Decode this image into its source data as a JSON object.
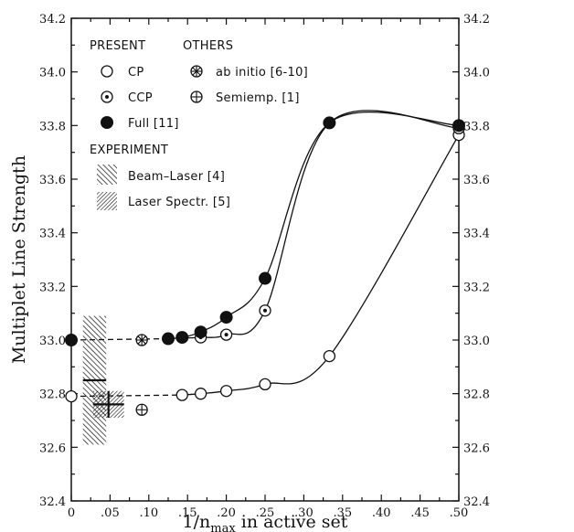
{
  "chart_data": {
    "type": "scatter",
    "xlabel": {
      "main": "1/n",
      "sub": "max",
      "rest": " in active set"
    },
    "ylabel": "Multiplet Line Strength",
    "xlim": [
      0,
      0.5
    ],
    "ylim": [
      32.4,
      34.2
    ],
    "x_ticks": [
      {
        "value": 0,
        "label": "0"
      },
      {
        "value": 0.05,
        "label": ".05"
      },
      {
        "value": 0.1,
        "label": ".10"
      },
      {
        "value": 0.15,
        "label": ".15"
      },
      {
        "value": 0.2,
        "label": ".20"
      },
      {
        "value": 0.25,
        "label": ".25"
      },
      {
        "value": 0.3,
        "label": ".30"
      },
      {
        "value": 0.35,
        "label": ".35"
      },
      {
        "value": 0.4,
        "label": ".40"
      },
      {
        "value": 0.45,
        "label": ".45"
      },
      {
        "value": 0.5,
        "label": ".50"
      }
    ],
    "y_ticks": [
      {
        "value": 32.4,
        "label": "32.4"
      },
      {
        "value": 32.6,
        "label": "32.6"
      },
      {
        "value": 32.8,
        "label": "32.8"
      },
      {
        "value": 33.0,
        "label": "33.0"
      },
      {
        "value": 33.2,
        "label": "33.2"
      },
      {
        "value": 33.4,
        "label": "33.4"
      },
      {
        "value": 33.6,
        "label": "33.6"
      },
      {
        "value": 33.8,
        "label": "33.8"
      },
      {
        "value": 34.0,
        "label": "34.0"
      },
      {
        "value": 34.2,
        "label": "34.2"
      }
    ],
    "legend": {
      "present_header": "PRESENT",
      "others_header": "OTHERS",
      "experiment_header": "EXPERIMENT",
      "cp": "CP",
      "ccp": "CCP",
      "full": "Full [11]",
      "ab_initio": "ab initio [6-10]",
      "semiemp": "Semiemp. [1]",
      "beam_laser": "Beam–Laser [4]",
      "laser_spectr": "Laser Spectr. [5]"
    },
    "series": [
      {
        "name": "CP",
        "marker": "open-circle",
        "x": [
          0,
          0.143,
          0.167,
          0.2,
          0.25,
          0.333,
          0.5
        ],
        "y": [
          32.79,
          32.795,
          32.8,
          32.81,
          32.835,
          32.94,
          33.765
        ]
      },
      {
        "name": "CCP",
        "marker": "dotted-circle",
        "x": [
          0.167,
          0.2,
          0.25,
          0.333,
          0.5
        ],
        "y": [
          33.01,
          33.02,
          33.11,
          33.81,
          33.79
        ]
      },
      {
        "name": "Full [11]",
        "marker": "filled-circle",
        "x": [
          0,
          0.125,
          0.143,
          0.167,
          0.2,
          0.25,
          0.333,
          0.5
        ],
        "y": [
          33.0,
          33.005,
          33.01,
          33.03,
          33.085,
          33.23,
          33.81,
          33.8
        ]
      },
      {
        "name": "ab initio [6-10]",
        "marker": "star-circle",
        "x": [
          0.091
        ],
        "y": [
          33.0
        ]
      },
      {
        "name": "Semiemp. [1]",
        "marker": "cross-circle",
        "x": [
          0.091
        ],
        "y": [
          32.74
        ]
      }
    ],
    "experiments": [
      {
        "name": "Beam–Laser [4]",
        "x": 0.03,
        "xerr": 0.015,
        "y": 32.85,
        "yerr": 0.24
      },
      {
        "name": "Laser Spectr. [5]",
        "x": 0.048,
        "xerr": 0.02,
        "y": 32.76,
        "yerr": 0.05
      }
    ],
    "curves": [
      {
        "name": "CP",
        "x": [
          0.143,
          0.167,
          0.2,
          0.25,
          0.333,
          0.5
        ],
        "y": [
          32.795,
          32.8,
          32.81,
          32.835,
          32.94,
          33.765
        ]
      },
      {
        "name": "CCP",
        "x": [
          0.143,
          0.167,
          0.2,
          0.25,
          0.333,
          0.5
        ],
        "y": [
          33.008,
          33.01,
          33.02,
          33.11,
          33.81,
          33.79
        ]
      },
      {
        "name": "Full [11]",
        "x": [
          0.125,
          0.143,
          0.167,
          0.2,
          0.25,
          0.333,
          0.5
        ],
        "y": [
          33.005,
          33.01,
          33.03,
          33.085,
          33.23,
          33.81,
          33.8
        ]
      }
    ],
    "extrapolations": [
      {
        "x": [
          0,
          0.143
        ],
        "y": [
          32.79,
          32.795
        ]
      },
      {
        "x": [
          0,
          0.125
        ],
        "y": [
          33.0,
          33.005
        ]
      }
    ]
  }
}
